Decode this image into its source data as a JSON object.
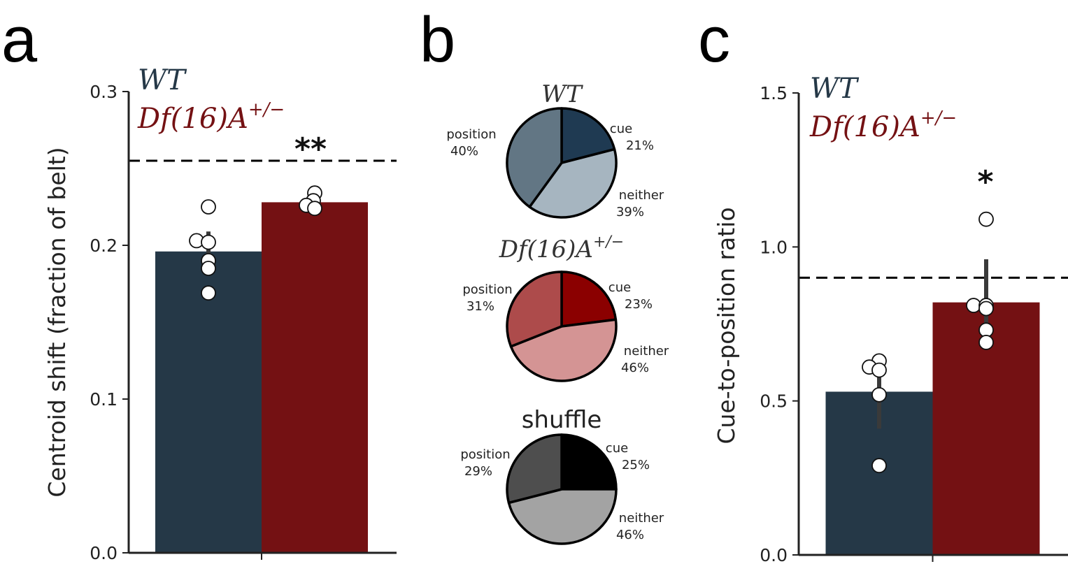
{
  "panels": {
    "a": "a",
    "b": "b",
    "c": "c"
  },
  "legend": {
    "wt": "WT",
    "df_base": "Df(16)A",
    "df_sup": "+/−"
  },
  "colors": {
    "wt": "#253847",
    "df": "#741113",
    "err": "#3a3a3a"
  },
  "chart_data": [
    {
      "type": "bar",
      "panel": "a",
      "categories": [
        "WT",
        "Df(16)A+/−"
      ],
      "values": [
        0.196,
        0.228
      ],
      "error_bar": [
        [
          0.188,
          0.209
        ],
        [
          0.224,
          0.233
        ]
      ],
      "points": [
        [
          0.225,
          0.203,
          0.202,
          0.19,
          0.185,
          0.169
        ],
        [
          0.234,
          0.229,
          0.226,
          0.224
        ]
      ],
      "reference_line": 0.255,
      "significance": "**",
      "ylabel": "Centroid shift (fraction of belt)",
      "ylim": [
        0,
        0.3
      ],
      "yticks": [
        "0.0",
        "0.1",
        "0.2",
        "0.3"
      ]
    },
    {
      "type": "pie",
      "panel": "b",
      "pies": [
        {
          "title": "WT",
          "style": "italic",
          "slices": [
            {
              "label": "cue",
              "pct_label": "21%",
              "value": 21,
              "color": "#1f3a52"
            },
            {
              "label": "neither",
              "pct_label": "39%",
              "value": 39,
              "color": "#a6b5c0"
            },
            {
              "label": "position",
              "pct_label": "40%",
              "value": 40,
              "color": "#627684"
            }
          ]
        },
        {
          "title": "Df(16)A+/−",
          "style": "italic",
          "slices": [
            {
              "label": "cue",
              "pct_label": "23%",
              "value": 23,
              "color": "#8b0000"
            },
            {
              "label": "neither",
              "pct_label": "46%",
              "value": 46,
              "color": "#d49494"
            },
            {
              "label": "position",
              "pct_label": "31%",
              "value": 31,
              "color": "#ad4b4b"
            }
          ]
        },
        {
          "title": "shuffle",
          "style": "plain",
          "slices": [
            {
              "label": "cue",
              "pct_label": "25%",
              "value": 25,
              "color": "#000000"
            },
            {
              "label": "neither",
              "pct_label": "46%",
              "value": 46,
              "color": "#a3a3a3"
            },
            {
              "label": "position",
              "pct_label": "29%",
              "value": 29,
              "color": "#4e4e4e"
            }
          ]
        }
      ]
    },
    {
      "type": "bar",
      "panel": "c",
      "categories": [
        "WT",
        "Df(16)A+/−"
      ],
      "values": [
        0.53,
        0.82
      ],
      "error_bar": [
        [
          0.41,
          0.62
        ],
        [
          0.69,
          0.96
        ]
      ],
      "points": [
        [
          0.63,
          0.61,
          0.6,
          0.52,
          0.29
        ],
        [
          1.09,
          0.81,
          0.81,
          0.8,
          0.73,
          0.69
        ]
      ],
      "reference_line": 0.9,
      "significance": "*",
      "ylabel": "Cue-to-position ratio",
      "ylim": [
        0,
        1.5
      ],
      "yticks": [
        "0.0",
        "0.5",
        "1.0",
        "1.5"
      ]
    }
  ]
}
